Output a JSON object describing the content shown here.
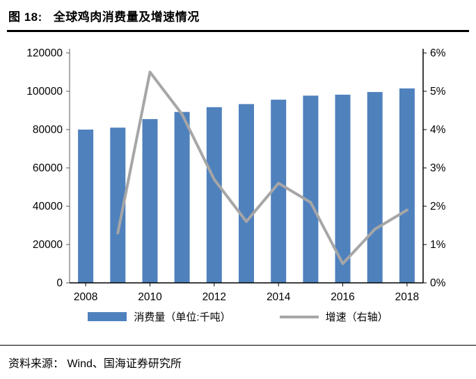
{
  "title": {
    "label": "图 18:",
    "text": "全球鸡肉消费量及增速情况"
  },
  "footer": {
    "source": "资料来源： Wind、国海证券研究所"
  },
  "chart_data": {
    "type": "bar+line combo",
    "categories": [
      "2008",
      "2009",
      "2010",
      "2011",
      "2012",
      "2013",
      "2014",
      "2015",
      "2016",
      "2017",
      "2018"
    ],
    "series": [
      {
        "name": "消费量（单位:千吨）",
        "type": "bar",
        "axis": "left",
        "color": "#4F81BD",
        "values": [
          80000,
          81000,
          85500,
          89200,
          91700,
          93300,
          95600,
          97700,
          98200,
          99600,
          101500
        ]
      },
      {
        "name": "增速（右轴）",
        "type": "line",
        "axis": "right",
        "color": "#A6A6A6",
        "values": [
          null,
          1.3,
          5.5,
          4.4,
          2.7,
          1.6,
          2.6,
          2.1,
          0.5,
          1.4,
          1.9
        ]
      }
    ],
    "left_axis": {
      "min": 0,
      "max": 120000,
      "step": 20000,
      "tick_labels": [
        "0",
        "20000",
        "40000",
        "60000",
        "80000",
        "100000",
        "120000"
      ]
    },
    "right_axis": {
      "min": 0,
      "max": 6,
      "step": 1,
      "tick_labels": [
        "0%",
        "1%",
        "2%",
        "3%",
        "4%",
        "5%",
        "6%"
      ]
    },
    "x_tick_labels": [
      "2008",
      "2010",
      "2012",
      "2014",
      "2016",
      "2018"
    ],
    "grid": false,
    "legend_position": "bottom",
    "colors": {
      "bottom_axis": "#000000",
      "right_axis": "#000000",
      "left_axis": "#595959",
      "tick": "#000000"
    }
  }
}
